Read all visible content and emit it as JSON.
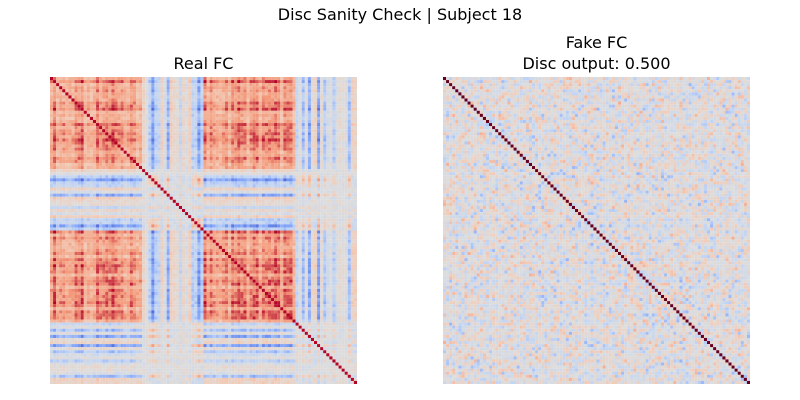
{
  "suptitle": "Disc Sanity Check | Subject 18",
  "chart_data": [
    {
      "type": "heatmap",
      "title": "Real FC",
      "matrix_size": 100,
      "value_range": [
        -1,
        1
      ],
      "diagonal_value": 1.0,
      "colormap": "coolwarm",
      "colormap_stops": [
        "#3b4cc0",
        "#7da0f9",
        "#c0d4f5",
        "#dddddd",
        "#f2cbb7",
        "#f49a7b",
        "#b40426"
      ],
      "diagonal_color": "#b40426",
      "axes_visible": false,
      "structure": "block-structured correlations: strongly positive (red) blocks at rows/cols 0-30 and 50-80, alternating blue stripes elsewhere"
    },
    {
      "type": "heatmap",
      "title": "Fake FC",
      "subtitle": "Disc output: 0.500",
      "disc_output": 0.5,
      "matrix_size": 100,
      "value_range": [
        -1,
        1
      ],
      "diagonal_value": 1.0,
      "colormap": "coolwarm",
      "colormap_stops": [
        "#3b4cc0",
        "#7da0f9",
        "#c0d4f5",
        "#dddddd",
        "#f2cbb7",
        "#f49a7b",
        "#b40426"
      ],
      "diagonal_color": "#67001f",
      "axes_visible": false,
      "structure": "near-zero noisy off-diagonal values (light blue / light peach), saturated diagonal"
    }
  ]
}
